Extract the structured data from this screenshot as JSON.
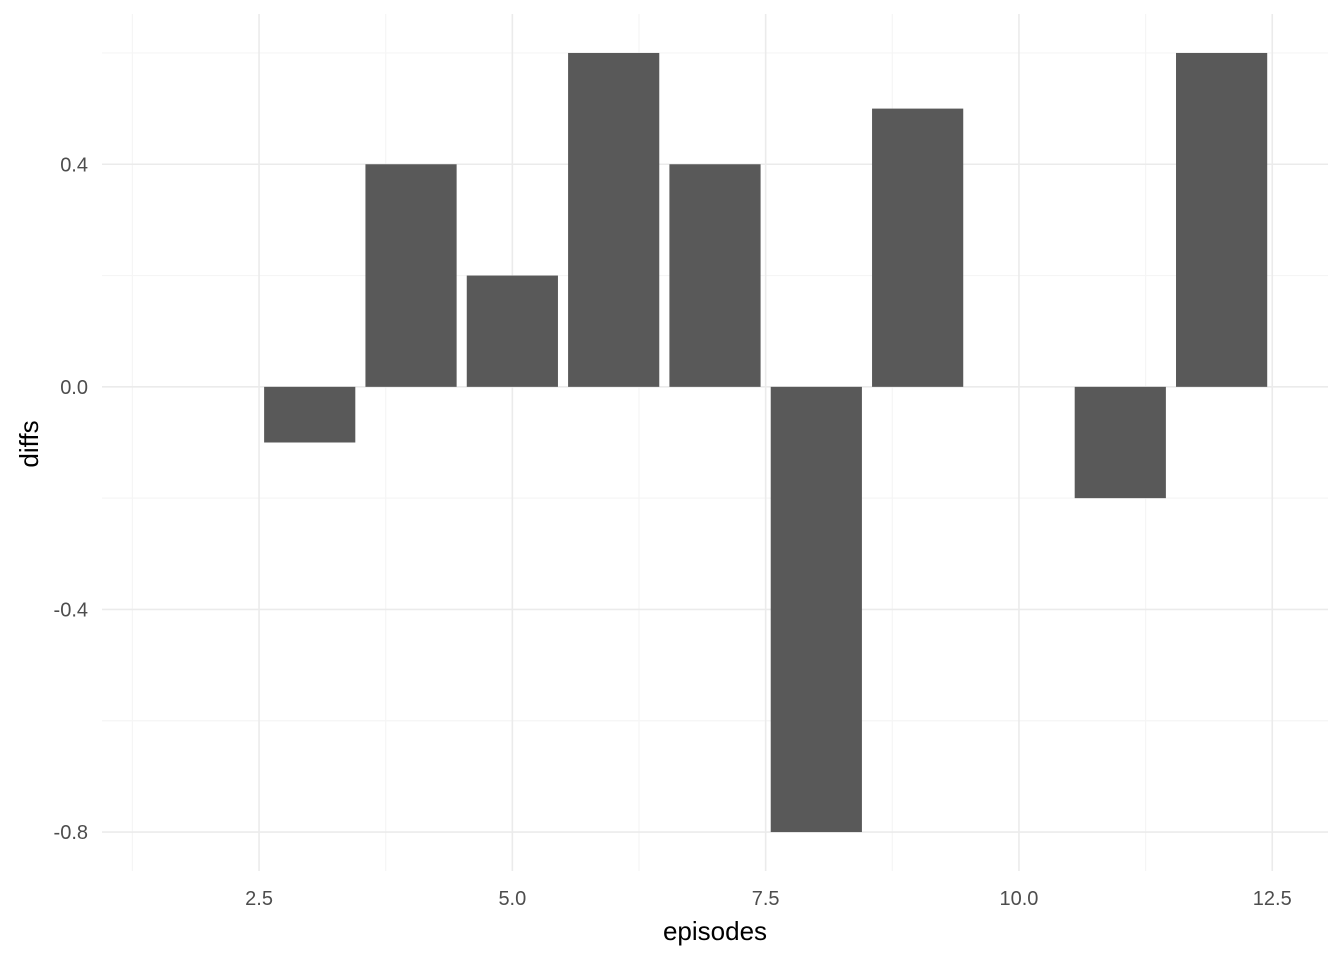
{
  "chart_data": {
    "type": "bar",
    "title": "",
    "xlabel": "episodes",
    "ylabel": "diffs",
    "x": [
      3,
      4,
      5,
      6,
      7,
      8,
      9,
      11,
      12
    ],
    "values": [
      -0.1,
      0.4,
      0.2,
      0.6,
      0.4,
      -0.8,
      0.5,
      -0.2,
      0.6
    ],
    "xlim": [
      1.5,
      12.5
    ],
    "ylim": [
      -0.8,
      0.6
    ],
    "x_ticks": [
      2.5,
      5.0,
      7.5,
      10.0,
      12.5
    ],
    "x_tick_labels": [
      "2.5",
      "5.0",
      "7.5",
      "10.0",
      "12.5"
    ],
    "x_minor_ticks": [
      1.25,
      3.75,
      6.25,
      8.75,
      11.25
    ],
    "y_ticks": [
      -0.8,
      -0.4,
      0.0,
      0.4
    ],
    "y_tick_labels": [
      "-0.8",
      "-0.4",
      "0.0",
      "0.4"
    ],
    "y_minor_ticks": [
      -0.6,
      -0.2,
      0.2,
      0.6
    ],
    "bar_width": 0.9,
    "grid": true,
    "legend": "none",
    "colors": {
      "bar": "#595959",
      "grid_major": "#ebebeb",
      "grid_minor": "#f5f5f5",
      "tick_text": "#4d4d4d",
      "axis_title": "#000000",
      "background": "#ffffff"
    }
  }
}
